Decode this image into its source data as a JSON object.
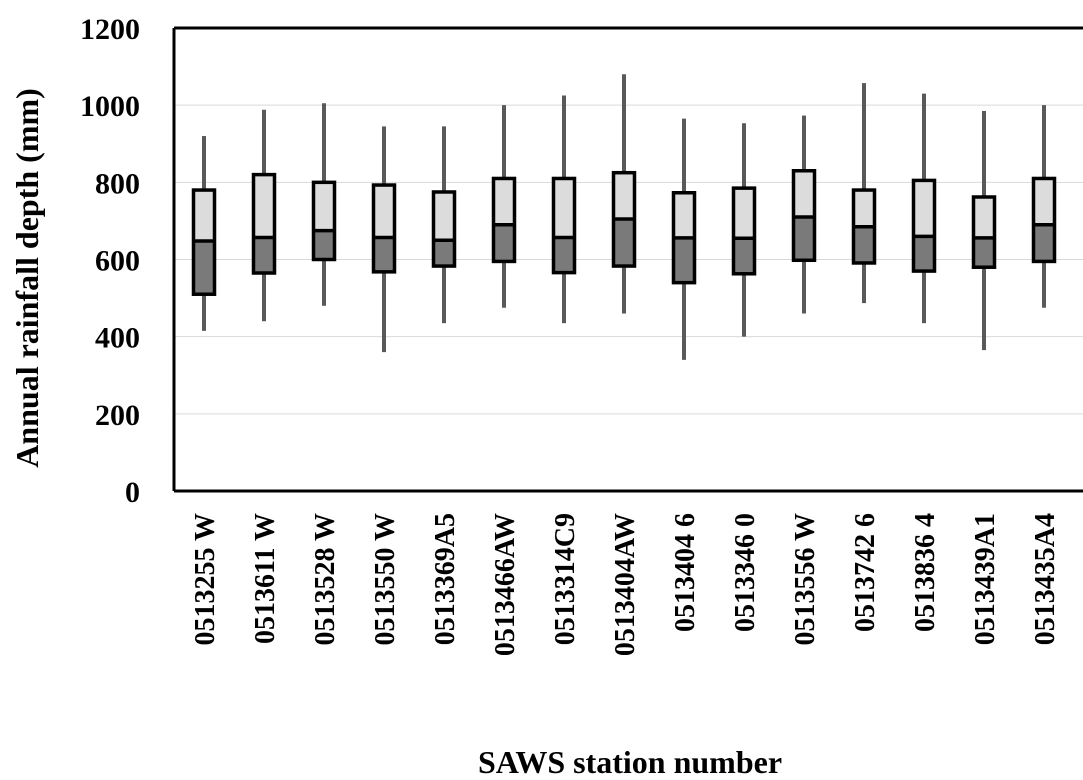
{
  "chart_data": {
    "type": "box",
    "xlabel": "SAWS station number",
    "ylabel": "Annual rainfall depth (mm)",
    "ylim": [
      0,
      1200
    ],
    "yticks": [
      0,
      200,
      400,
      600,
      800,
      1000,
      1200
    ],
    "grid": "horizontal",
    "colors": {
      "lower_box": "#7a7a7a",
      "upper_box": "#dcdcdc",
      "box_edge": "#000000",
      "whisker": "#595959",
      "gridline": "#d9d9d9",
      "axis": "#000000"
    },
    "categories": [
      "0513255 W",
      "0513611 W",
      "0513528 W",
      "0513550 W",
      "0513369A5",
      "0513466AW",
      "0513314C9",
      "0513404AW",
      "0513404 6",
      "0513346 0",
      "0513556 W",
      "0513742 6",
      "0513836 4",
      "0513439A1",
      "0513435A4"
    ],
    "min": [
      415,
      440,
      480,
      360,
      435,
      475,
      435,
      460,
      340,
      400,
      460,
      487,
      435,
      365,
      475
    ],
    "q1": [
      510,
      565,
      600,
      568,
      583,
      595,
      566,
      583,
      540,
      563,
      598,
      591,
      570,
      580,
      595
    ],
    "median": [
      648,
      657,
      675,
      657,
      650,
      690,
      657,
      705,
      656,
      655,
      710,
      685,
      660,
      656,
      690
    ],
    "q3": [
      780,
      820,
      800,
      793,
      775,
      810,
      810,
      825,
      773,
      785,
      830,
      780,
      805,
      762,
      810
    ],
    "max": [
      920,
      988,
      1005,
      945,
      945,
      1000,
      1025,
      1080,
      965,
      953,
      973,
      1057,
      1030,
      985,
      1000
    ]
  }
}
